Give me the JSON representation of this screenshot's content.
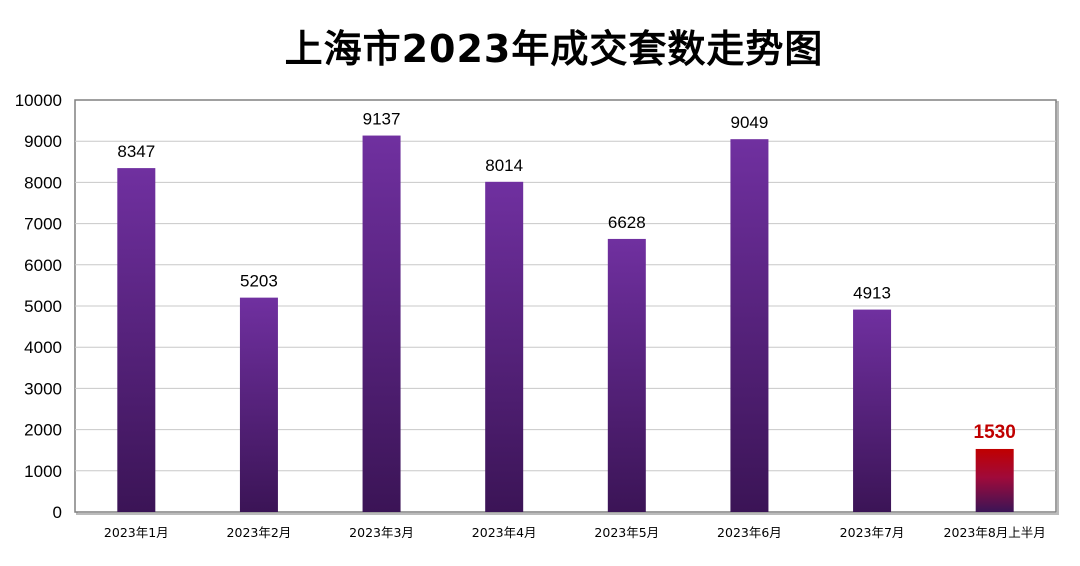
{
  "chart_data": {
    "type": "bar",
    "title": "上海市2023年成交套数走势图",
    "xlabel": "",
    "ylabel": "",
    "ylim": [
      0,
      10000
    ],
    "yticks": [
      0,
      1000,
      2000,
      3000,
      4000,
      5000,
      6000,
      7000,
      8000,
      9000,
      10000
    ],
    "grid": true,
    "categories": [
      "2023年1月",
      "2023年2月",
      "2023年3月",
      "2023年4月",
      "2023年5月",
      "2023年6月",
      "2023年7月",
      "2023年8月上半月"
    ],
    "values": [
      8347,
      5203,
      9137,
      8014,
      6628,
      9049,
      4913,
      1530
    ],
    "highlight_index": 7,
    "colors": {
      "bar_top": "#7030a0",
      "bar_bottom": "#3b1456",
      "highlight_top": "#c00000",
      "highlight_bottom": "#3b1456",
      "highlight_label": "#c00000",
      "grid": "#c8c8c8",
      "frame": "#808080"
    }
  }
}
